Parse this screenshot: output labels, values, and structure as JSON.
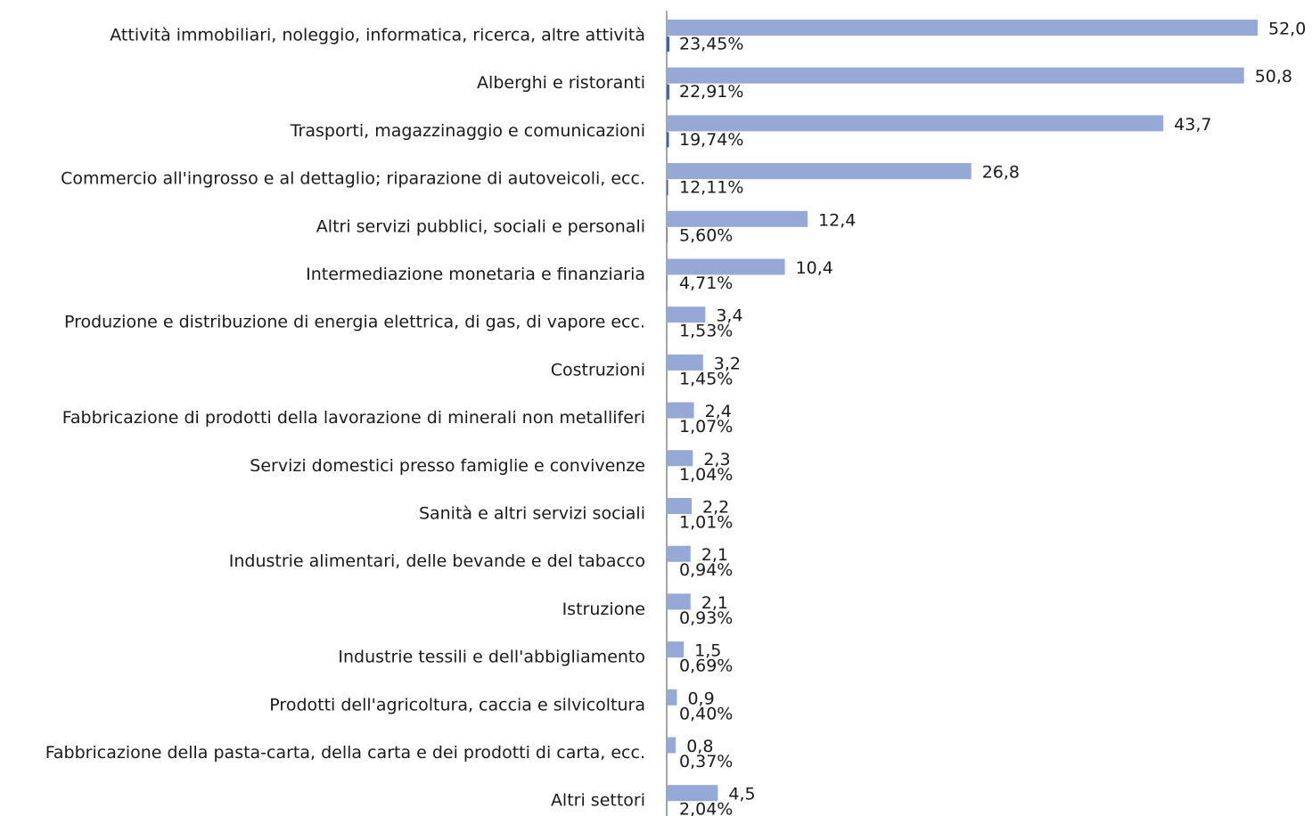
{
  "chart_data": {
    "type": "bar",
    "orientation": "horizontal",
    "categories": [
      "Attività immobiliari,  noleggio, informatica, ricerca,  altre attività",
      "Alberghi e ristoranti",
      "Trasporti, magazzinaggio e comunicazioni",
      "Commercio all'ingrosso e al dettaglio; riparazione di autoveicoli, ecc.",
      "Altri servizi pubblici, sociali e personali",
      "Intermediazione monetaria e finanziaria",
      "Produzione e distribuzione di energia elettrica, di gas, di vapore ecc.",
      "Costruzioni",
      "Fabbricazione di prodotti della lavorazione di minerali non metalliferi",
      "Servizi domestici presso famiglie e convivenze",
      "Sanità e altri servizi sociali",
      "Industrie alimentari, delle bevande e del tabacco",
      "Istruzione",
      "Industrie tessili e dell'abbigliamento",
      "Prodotti dell'agricoltura, caccia e silvicoltura",
      "Fabbricazione della pasta-carta, della carta e dei prodotti di carta, ecc.",
      "Altri settori"
    ],
    "series": [
      {
        "color": "#95a8d6",
        "values": [
          52.0,
          50.8,
          43.7,
          26.8,
          12.4,
          10.4,
          3.4,
          3.2,
          2.4,
          2.3,
          2.2,
          2.1,
          2.1,
          1.5,
          0.9,
          0.8,
          4.5
        ],
        "value_labels": [
          "52,0",
          "50,8",
          "43,7",
          "26,8",
          "12,4",
          "10,4",
          "3,4",
          "3,2",
          "2,4",
          "2,3",
          "2,2",
          "2,1",
          "2,1",
          "1,5",
          "0,9",
          "0,8",
          "4,5"
        ]
      },
      {
        "color": "#3f63a8",
        "values": [
          0.2345,
          0.2291,
          0.1974,
          0.1211,
          0.056,
          0.0471,
          0.0153,
          0.0145,
          0.0107,
          0.0104,
          0.0101,
          0.0094,
          0.0093,
          0.0069,
          0.004,
          0.0037,
          0.0204
        ],
        "value_labels": [
          "23,45%",
          "22,91%",
          "19,74%",
          "12,11%",
          "5,60%",
          "4,71%",
          "1,53%",
          "1,45%",
          "1,07%",
          "1,04%",
          "1,01%",
          "0,94%",
          "0,93%",
          "0,69%",
          "0,40%",
          "0,37%",
          "2,04%"
        ]
      }
    ]
  }
}
